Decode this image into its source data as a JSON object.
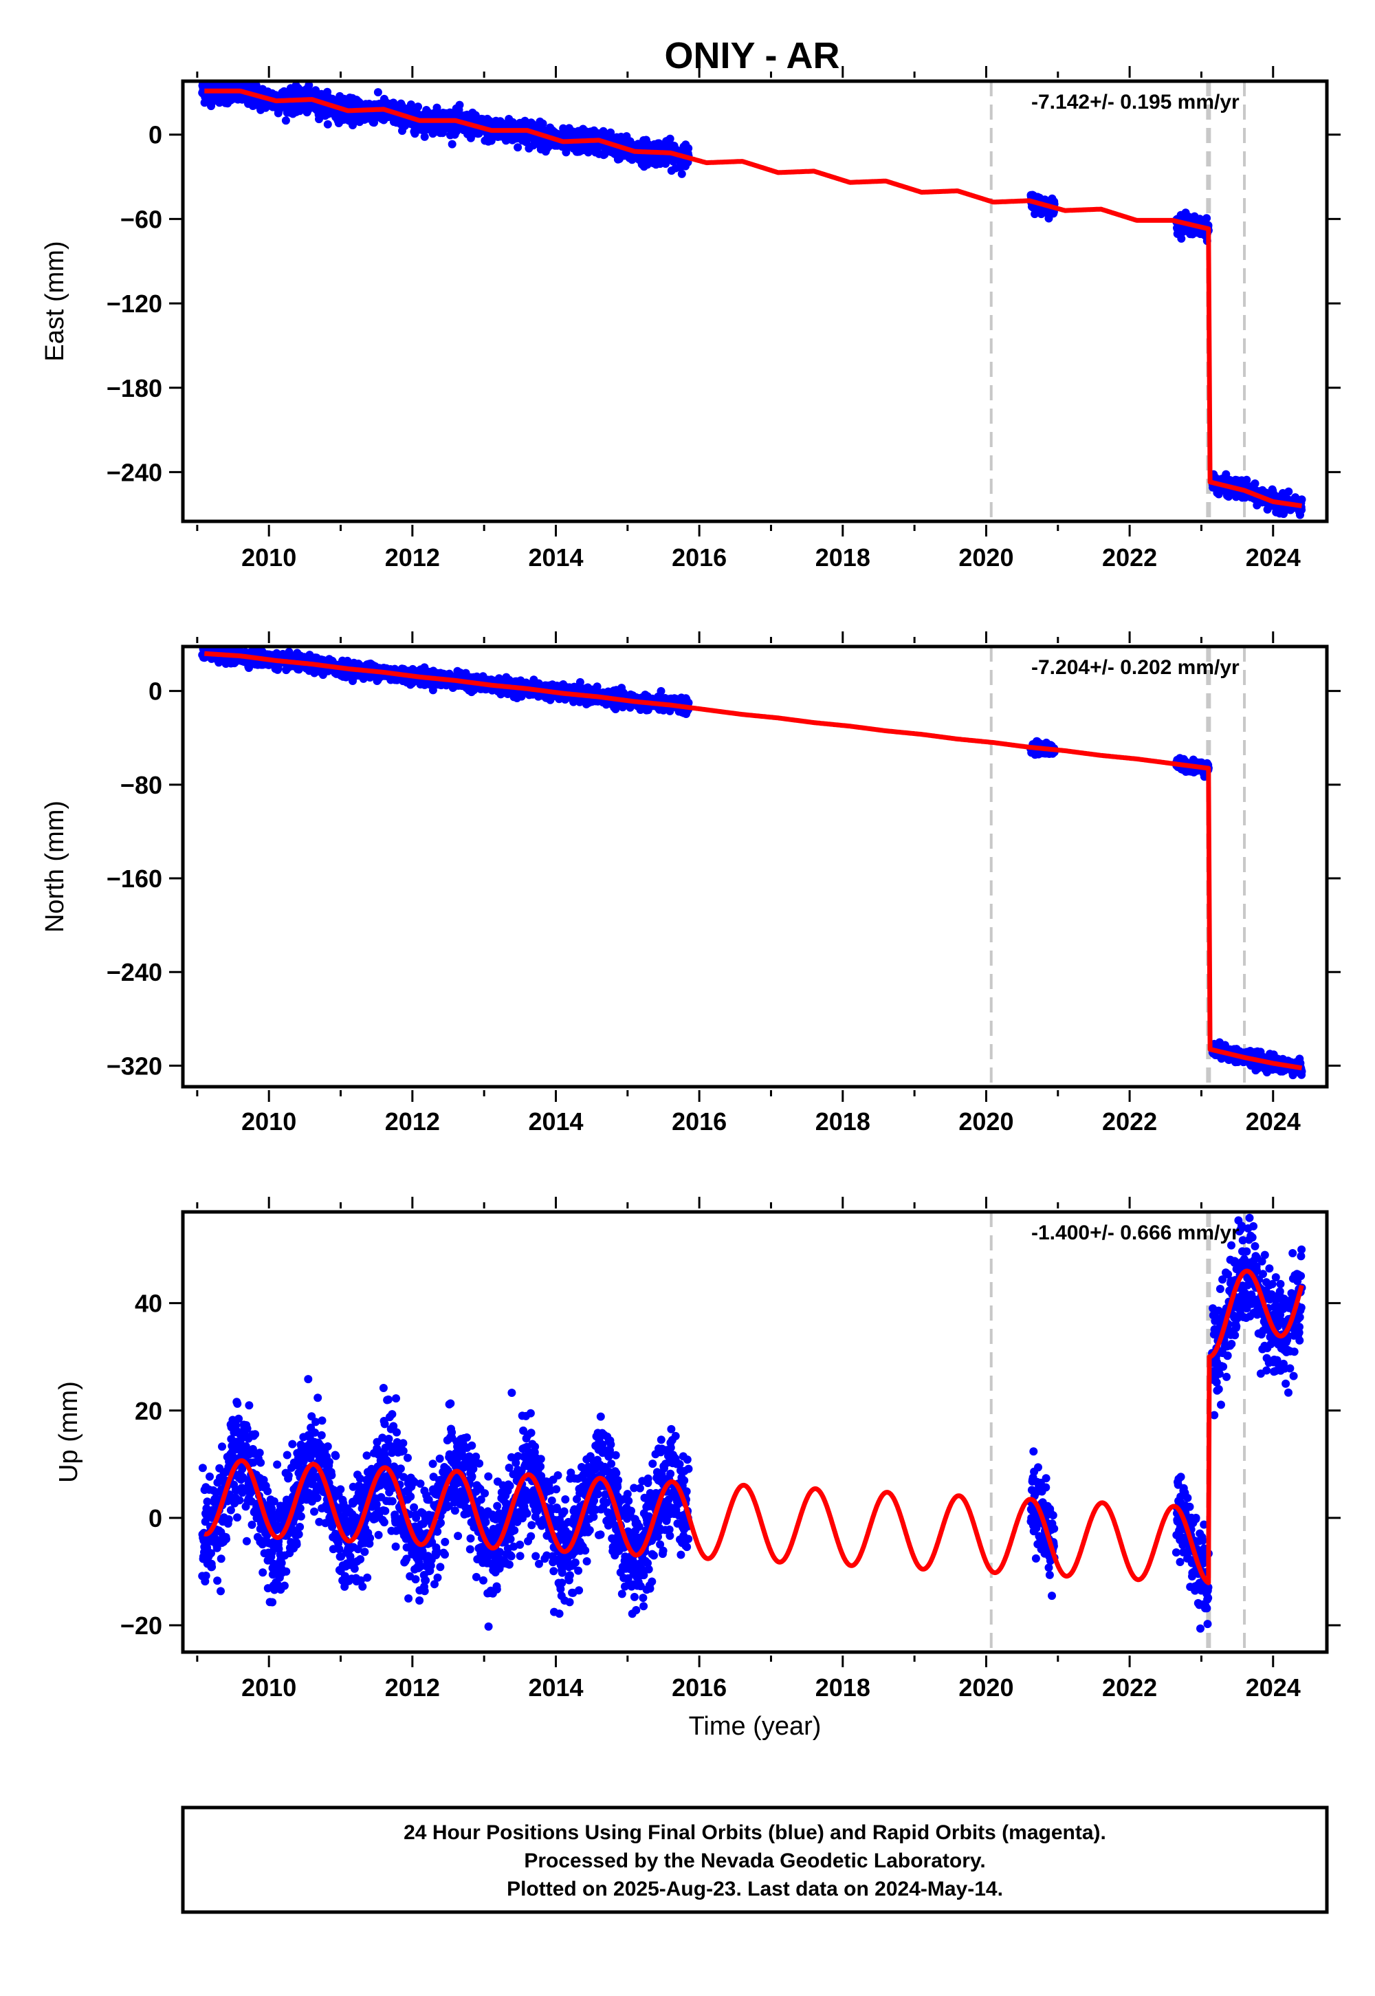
{
  "title": "ONIY - AR",
  "colors": {
    "data_points": "#0000ff",
    "model_line": "#ff0000",
    "break_lines": "#c8c8c8",
    "frame": "#000000"
  },
  "chart_data": [
    {
      "type": "scatter",
      "component": "east",
      "ylabel": "East (mm)",
      "xlim": [
        2008.8,
        2024.75
      ],
      "ylim": [
        -275,
        38
      ],
      "yticks": [
        0,
        -60,
        -120,
        -180,
        -240
      ],
      "ytick_labels": [
        "0",
        "−60",
        "−120",
        "−180",
        "−240"
      ],
      "xticks": [
        2010,
        2012,
        2014,
        2016,
        2018,
        2020,
        2022,
        2024
      ],
      "xtick_labels": [
        "2010",
        "2012",
        "2014",
        "2016",
        "2018",
        "2020",
        "2022",
        "2024"
      ],
      "rate_text": "-7.142+/- 0.195 mm/yr",
      "model_line": [
        [
          2009.1,
          31
        ],
        [
          2009.6,
          31
        ],
        [
          2010.1,
          24
        ],
        [
          2010.6,
          25
        ],
        [
          2011.1,
          17
        ],
        [
          2011.6,
          18
        ],
        [
          2012.1,
          10
        ],
        [
          2012.6,
          10
        ],
        [
          2013.1,
          3
        ],
        [
          2013.6,
          3
        ],
        [
          2014.1,
          -5
        ],
        [
          2014.6,
          -4
        ],
        [
          2015.1,
          -12
        ],
        [
          2015.6,
          -13
        ],
        [
          2016.1,
          -20
        ],
        [
          2016.6,
          -19
        ],
        [
          2017.1,
          -27
        ],
        [
          2017.6,
          -26
        ],
        [
          2018.1,
          -34
        ],
        [
          2018.6,
          -33
        ],
        [
          2019.1,
          -41
        ],
        [
          2019.6,
          -40
        ],
        [
          2020.1,
          -48
        ],
        [
          2020.6,
          -47
        ],
        [
          2021.1,
          -54
        ],
        [
          2021.6,
          -53
        ],
        [
          2022.1,
          -61
        ],
        [
          2022.6,
          -61
        ],
        [
          2023.1,
          -67
        ],
        [
          2023.12,
          -247
        ],
        [
          2023.6,
          -253
        ],
        [
          2024.0,
          -261
        ],
        [
          2024.4,
          -264
        ]
      ],
      "data_segments": [
        {
          "start": 2009.07,
          "end": 2015.85,
          "start_value": 31,
          "end_value": -17,
          "scatter": 4
        },
        {
          "start": 2020.62,
          "end": 2020.95,
          "start_value": -50,
          "end_value": -53,
          "scatter": 3
        },
        {
          "start": 2022.65,
          "end": 2023.1,
          "start_value": -63,
          "end_value": -67,
          "scatter": 3
        },
        {
          "start": 2023.15,
          "end": 2024.4,
          "start_value": -247,
          "end_value": -265,
          "scatter": 3
        }
      ],
      "break_lines": [
        {
          "year": 2020.07,
          "style": "dashed"
        },
        {
          "year": 2023.1,
          "style": "dashed-thick"
        },
        {
          "year": 2023.6,
          "style": "dashed"
        }
      ]
    },
    {
      "type": "scatter",
      "component": "north",
      "ylabel": "North (mm)",
      "xlim": [
        2008.8,
        2024.75
      ],
      "ylim": [
        -338,
        38
      ],
      "yticks": [
        0,
        -80,
        -160,
        -240,
        -320
      ],
      "ytick_labels": [
        "0",
        "−80",
        "−160",
        "−240",
        "−320"
      ],
      "xticks": [
        2010,
        2012,
        2014,
        2016,
        2018,
        2020,
        2022,
        2024
      ],
      "xtick_labels": [
        "2010",
        "2012",
        "2014",
        "2016",
        "2018",
        "2020",
        "2022",
        "2024"
      ],
      "rate_text": "-7.204+/- 0.202 mm/yr",
      "model_line": [
        [
          2009.1,
          32
        ],
        [
          2009.6,
          30
        ],
        [
          2010.1,
          26
        ],
        [
          2010.6,
          23
        ],
        [
          2011.1,
          19
        ],
        [
          2011.6,
          16
        ],
        [
          2012.1,
          12
        ],
        [
          2012.6,
          9
        ],
        [
          2013.1,
          5
        ],
        [
          2013.6,
          2
        ],
        [
          2014.1,
          -2
        ],
        [
          2014.6,
          -5
        ],
        [
          2015.1,
          -9
        ],
        [
          2015.6,
          -12
        ],
        [
          2016.1,
          -16
        ],
        [
          2016.6,
          -20
        ],
        [
          2017.1,
          -23
        ],
        [
          2017.6,
          -27
        ],
        [
          2018.1,
          -30
        ],
        [
          2018.6,
          -34
        ],
        [
          2019.1,
          -37
        ],
        [
          2019.6,
          -41
        ],
        [
          2020.1,
          -44
        ],
        [
          2020.6,
          -48
        ],
        [
          2021.1,
          -51
        ],
        [
          2021.6,
          -55
        ],
        [
          2022.1,
          -58
        ],
        [
          2022.6,
          -62
        ],
        [
          2023.1,
          -66
        ],
        [
          2023.12,
          -306
        ],
        [
          2023.6,
          -313
        ],
        [
          2024.0,
          -318
        ],
        [
          2024.4,
          -322
        ]
      ],
      "data_segments": [
        {
          "start": 2009.07,
          "end": 2015.85,
          "start_value": 32,
          "end_value": -12,
          "scatter": 3
        },
        {
          "start": 2020.62,
          "end": 2020.95,
          "start_value": -50,
          "end_value": -51,
          "scatter": 2.5
        },
        {
          "start": 2022.65,
          "end": 2023.1,
          "start_value": -62,
          "end_value": -66,
          "scatter": 2.5
        },
        {
          "start": 2023.15,
          "end": 2024.4,
          "start_value": -306,
          "end_value": -323,
          "scatter": 3
        }
      ],
      "break_lines": [
        {
          "year": 2020.07,
          "style": "dashed"
        },
        {
          "year": 2023.1,
          "style": "dashed-thick"
        },
        {
          "year": 2023.6,
          "style": "dashed"
        }
      ]
    },
    {
      "type": "scatter",
      "component": "up",
      "ylabel": "Up (mm)",
      "xlabel": "Time (year)",
      "xlim": [
        2008.8,
        2024.75
      ],
      "ylim": [
        -25,
        57
      ],
      "yticks": [
        40,
        20,
        0,
        -20
      ],
      "ytick_labels": [
        "40",
        "20",
        "0",
        "−20"
      ],
      "xticks": [
        2010,
        2012,
        2014,
        2016,
        2018,
        2020,
        2022,
        2024
      ],
      "xtick_labels": [
        "2010",
        "2012",
        "2014",
        "2016",
        "2018",
        "2020",
        "2022",
        "2024"
      ],
      "rate_text": "-1.400+/- 0.666 mm/yr",
      "annual_amplitude": 7,
      "annual_peak_phase": 0.62,
      "pre_offset_trend": [
        [
          2009.1,
          4
        ],
        [
          2024.4,
          -6
        ]
      ],
      "post_offset_trend": [
        [
          2023.12,
          37
        ],
        [
          2024.4,
          42
        ]
      ],
      "data_segments": [
        {
          "start": 2009.07,
          "end": 2015.85,
          "scatter": 5
        },
        {
          "start": 2020.62,
          "end": 2020.95,
          "scatter": 4
        },
        {
          "start": 2022.65,
          "end": 2023.1,
          "scatter": 4
        },
        {
          "start": 2023.15,
          "end": 2024.4,
          "scatter": 5
        }
      ],
      "break_lines": [
        {
          "year": 2020.07,
          "style": "dashed"
        },
        {
          "year": 2023.1,
          "style": "dashed-thick"
        },
        {
          "year": 2023.6,
          "style": "dashed"
        }
      ]
    }
  ],
  "footer": {
    "line1": "24 Hour Positions Using Final Orbits (blue) and Rapid Orbits (magenta).",
    "line2": "Processed by the Nevada Geodetic Laboratory.",
    "line3": "Plotted on 2025-Aug-23. Last data on 2024-May-14."
  }
}
